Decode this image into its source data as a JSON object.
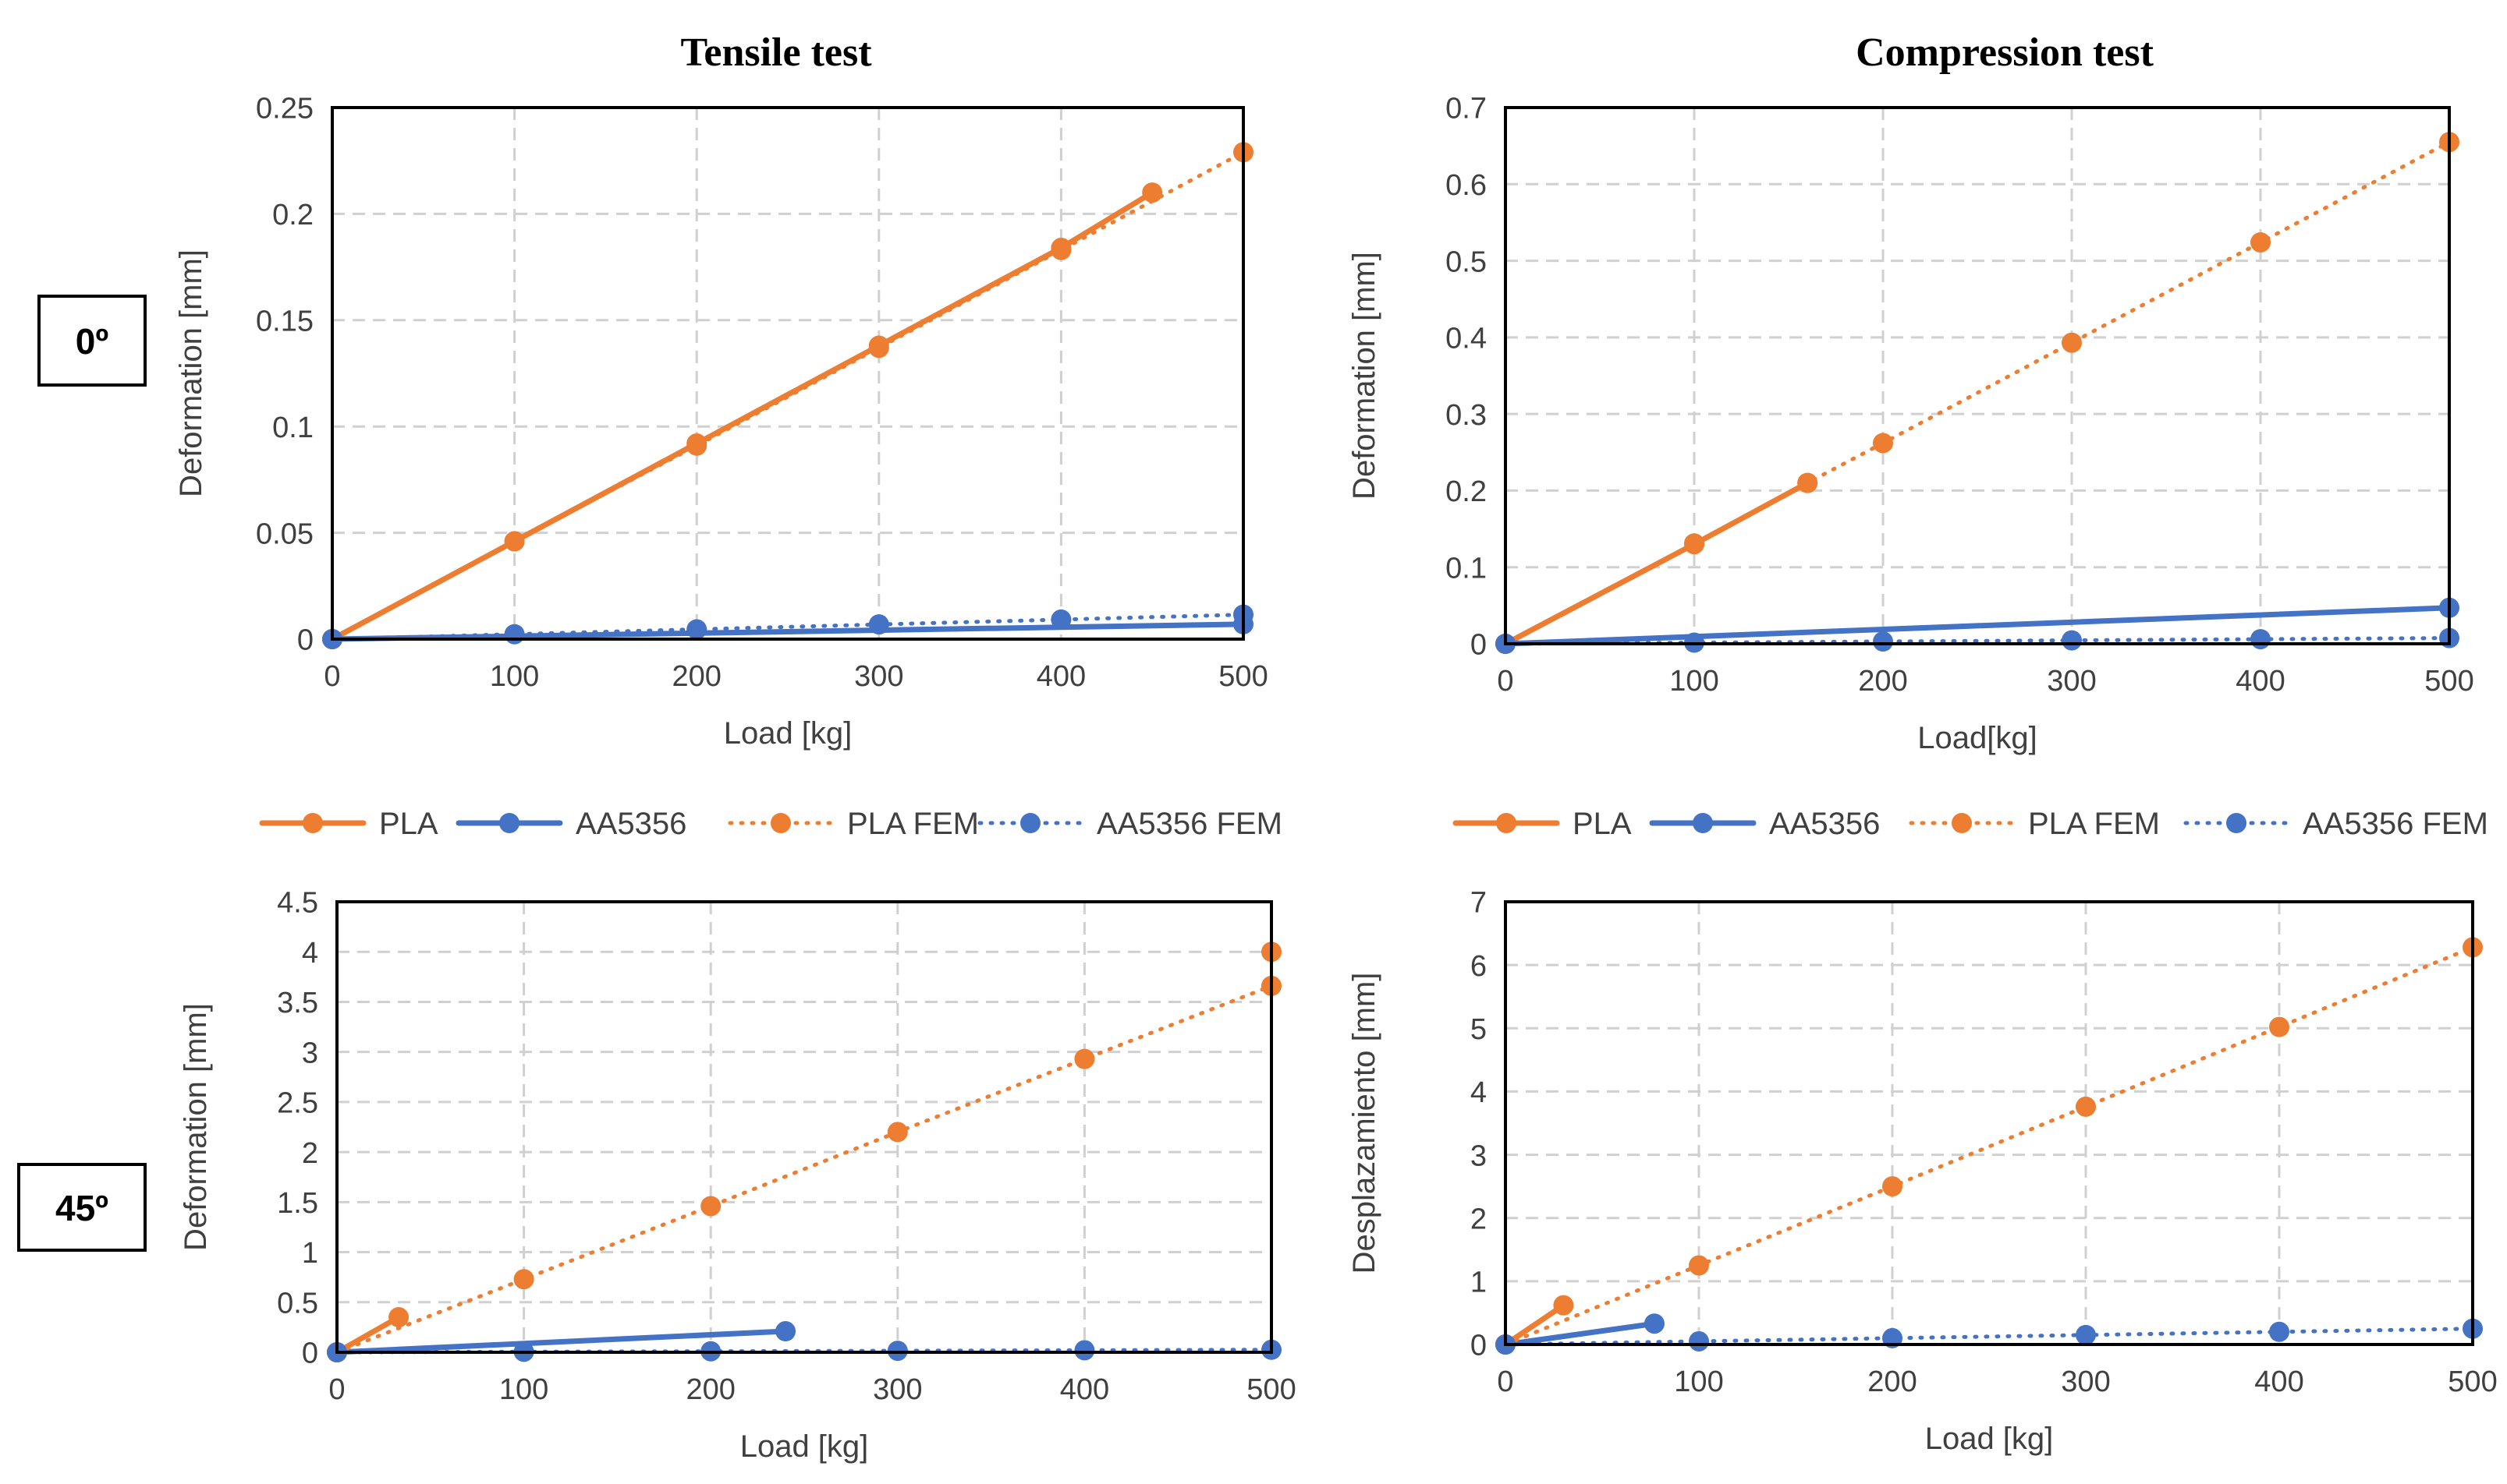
{
  "column_titles": [
    "Tensile test",
    "Compression test"
  ],
  "row_labels": [
    "0º",
    "45º"
  ],
  "colors": {
    "pla": "#ED7D31",
    "aa5356": "#4472C4",
    "grid": "#D0D0D0",
    "axis": "#000000",
    "text": "#404040"
  },
  "legend": [
    {
      "label": "PLA",
      "color": "#ED7D31",
      "style": "solid"
    },
    {
      "label": "AA5356",
      "color": "#4472C4",
      "style": "solid"
    },
    {
      "label": "PLA FEM",
      "color": "#ED7D31",
      "style": "dotted"
    },
    {
      "label": "AA5356 FEM",
      "color": "#4472C4",
      "style": "dotted"
    }
  ],
  "chart_data": [
    {
      "type": "line",
      "xlabel": "Load [kg]",
      "ylabel": "Deformation [mm]",
      "xlim": [
        0,
        500
      ],
      "ylim": [
        0,
        0.25
      ],
      "xticks": [
        "0",
        "100",
        "200",
        "300",
        "400",
        "500"
      ],
      "yticks": [
        "0",
        "0.05",
        "0.1",
        "0.15",
        "0.2",
        "0.25"
      ],
      "grid": true,
      "legend_position": "bottom",
      "series": [
        {
          "name": "PLA",
          "x": [
            0,
            100,
            200,
            300,
            400,
            450
          ],
          "y": [
            0,
            0.046,
            0.092,
            0.138,
            0.184,
            0.21
          ]
        },
        {
          "name": "AA5356",
          "x": [
            0,
            500
          ],
          "y": [
            0,
            0.007
          ]
        },
        {
          "name": "PLA FEM",
          "x": [
            0,
            100,
            200,
            300,
            400,
            500
          ],
          "y": [
            0,
            0.046,
            0.091,
            0.137,
            0.183,
            0.229
          ]
        },
        {
          "name": "AA5356 FEM",
          "x": [
            0,
            100,
            200,
            300,
            400,
            500
          ],
          "y": [
            0,
            0.0023,
            0.0046,
            0.0069,
            0.0092,
            0.0115
          ]
        }
      ]
    },
    {
      "type": "line",
      "xlabel": "Load[kg]",
      "ylabel": "Deformation [mm]",
      "xlim": [
        0,
        500
      ],
      "ylim": [
        0,
        0.7
      ],
      "xticks": [
        "0",
        "100",
        "200",
        "300",
        "400",
        "500"
      ],
      "yticks": [
        "0",
        "0.1",
        "0.2",
        "0.3",
        "0.4",
        "0.5",
        "0.6",
        "0.7"
      ],
      "grid": true,
      "legend_position": "bottom",
      "series": [
        {
          "name": "PLA",
          "x": [
            0,
            100,
            160
          ],
          "y": [
            0,
            0.13,
            0.21
          ]
        },
        {
          "name": "AA5356",
          "x": [
            0,
            500
          ],
          "y": [
            0,
            0.047
          ]
        },
        {
          "name": "PLA FEM",
          "x": [
            0,
            100,
            160,
            200,
            300,
            400,
            500
          ],
          "y": [
            0,
            0.131,
            0.21,
            0.262,
            0.393,
            0.524,
            0.655
          ]
        },
        {
          "name": "AA5356 FEM",
          "x": [
            0,
            100,
            200,
            300,
            400,
            500
          ],
          "y": [
            0,
            0.0015,
            0.003,
            0.0045,
            0.006,
            0.0075
          ]
        }
      ]
    },
    {
      "type": "line",
      "xlabel": "Load [kg]",
      "ylabel": "Deformation [mm]",
      "xlim": [
        0,
        500
      ],
      "ylim": [
        0,
        4.5
      ],
      "xticks": [
        "0",
        "100",
        "200",
        "300",
        "400",
        "500"
      ],
      "yticks": [
        "0",
        "0.5",
        "1",
        "1.5",
        "2",
        "2.5",
        "3",
        "3.5",
        "4",
        "4.5"
      ],
      "grid": true,
      "legend_position": "none",
      "series": [
        {
          "name": "PLA",
          "x": [
            0,
            33,
            500
          ],
          "y": [
            0,
            0.35,
            4.0
          ],
          "markers_only_after_first": true
        },
        {
          "name": "AA5356",
          "x": [
            0,
            240
          ],
          "y": [
            0,
            0.21
          ]
        },
        {
          "name": "PLA FEM",
          "x": [
            0,
            100,
            200,
            300,
            400,
            500
          ],
          "y": [
            0,
            0.73,
            1.46,
            2.2,
            2.93,
            3.66
          ]
        },
        {
          "name": "AA5356 FEM",
          "x": [
            0,
            100,
            200,
            300,
            400,
            500
          ],
          "y": [
            0,
            0.005,
            0.01,
            0.015,
            0.02,
            0.025
          ]
        }
      ]
    },
    {
      "type": "line",
      "xlabel": "Load [kg]",
      "ylabel": "Desplazamiento [mm]",
      "xlim": [
        0,
        500
      ],
      "ylim": [
        0,
        7
      ],
      "xticks": [
        "0",
        "100",
        "200",
        "300",
        "400",
        "500"
      ],
      "yticks": [
        "0",
        "1",
        "2",
        "3",
        "4",
        "5",
        "6",
        "7"
      ],
      "grid": true,
      "legend_position": "none",
      "series": [
        {
          "name": "PLA",
          "x": [
            0,
            30
          ],
          "y": [
            0,
            0.62
          ]
        },
        {
          "name": "AA5356",
          "x": [
            0,
            77
          ],
          "y": [
            0,
            0.33
          ]
        },
        {
          "name": "PLA FEM",
          "x": [
            0,
            100,
            200,
            300,
            400,
            500
          ],
          "y": [
            0,
            1.25,
            2.5,
            3.76,
            5.02,
            6.28
          ]
        },
        {
          "name": "AA5356 FEM",
          "x": [
            0,
            100,
            200,
            300,
            400,
            500
          ],
          "y": [
            0,
            0.05,
            0.1,
            0.15,
            0.2,
            0.25
          ]
        }
      ]
    }
  ]
}
